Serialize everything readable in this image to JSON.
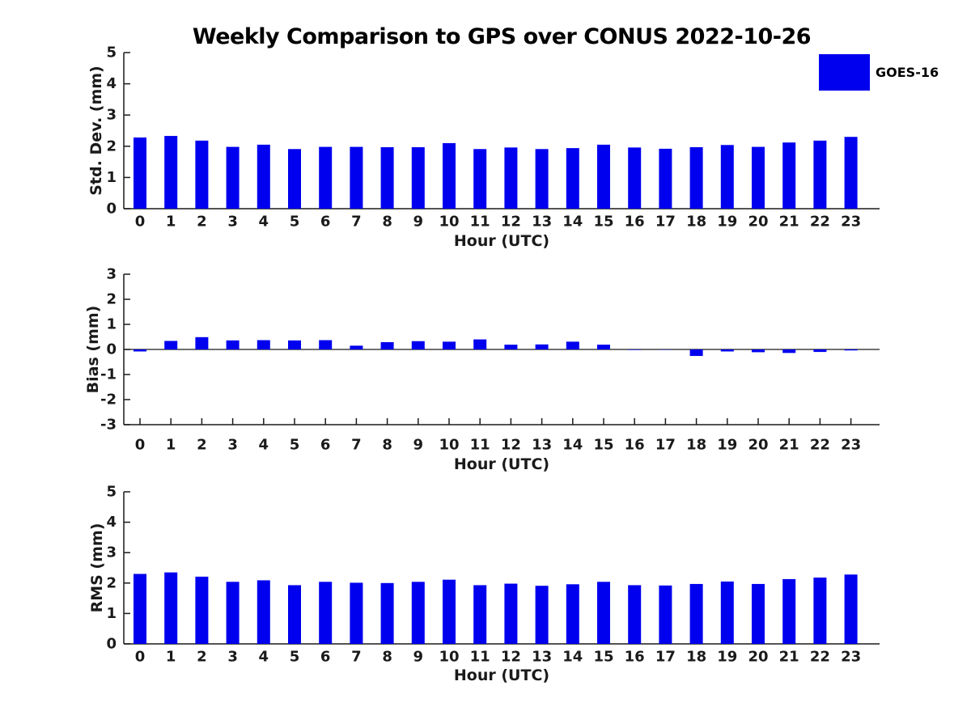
{
  "title": "Weekly Comparison to GPS over CONUS 2022-10-26",
  "legend": {
    "label": "GOES-16",
    "color": "#0000ee"
  },
  "bar_color": "#0000ee",
  "axis_color": "#1a1a1a",
  "hours": [
    "0",
    "1",
    "2",
    "3",
    "4",
    "5",
    "6",
    "7",
    "8",
    "9",
    "10",
    "11",
    "12",
    "13",
    "14",
    "15",
    "16",
    "17",
    "18",
    "19",
    "20",
    "21",
    "22",
    "23"
  ],
  "chart_data": [
    {
      "type": "bar",
      "title": "Weekly Comparison to GPS over CONUS 2022-10-26",
      "series_name": "GOES-16",
      "xlabel": "Hour (UTC)",
      "ylabel": "Std. Dev. (mm)",
      "categories": [
        "0",
        "1",
        "2",
        "3",
        "4",
        "5",
        "6",
        "7",
        "8",
        "9",
        "10",
        "11",
        "12",
        "13",
        "14",
        "15",
        "16",
        "17",
        "18",
        "19",
        "20",
        "21",
        "22",
        "23"
      ],
      "values": [
        2.28,
        2.33,
        2.18,
        1.98,
        2.05,
        1.91,
        1.98,
        1.98,
        1.97,
        1.97,
        2.1,
        1.91,
        1.96,
        1.91,
        1.94,
        2.05,
        1.96,
        1.92,
        1.97,
        2.04,
        1.98,
        2.12,
        2.18,
        2.3
      ],
      "ylim": [
        0,
        5
      ],
      "yticks": [
        0,
        1,
        2,
        3,
        4,
        5
      ],
      "grid": false,
      "legend_position": "top-right"
    },
    {
      "type": "bar",
      "title": "",
      "series_name": "GOES-16",
      "xlabel": "Hour (UTC)",
      "ylabel": "Bias (mm)",
      "categories": [
        "0",
        "1",
        "2",
        "3",
        "4",
        "5",
        "6",
        "7",
        "8",
        "9",
        "10",
        "11",
        "12",
        "13",
        "14",
        "15",
        "16",
        "17",
        "18",
        "19",
        "20",
        "21",
        "22",
        "23"
      ],
      "values": [
        -0.08,
        0.34,
        0.49,
        0.36,
        0.37,
        0.36,
        0.37,
        0.15,
        0.29,
        0.33,
        0.31,
        0.4,
        0.19,
        0.2,
        0.31,
        0.19,
        -0.02,
        -0.01,
        -0.26,
        -0.08,
        -0.11,
        -0.14,
        -0.1,
        -0.04
      ],
      "ylim": [
        -3,
        3
      ],
      "yticks": [
        -3,
        -2,
        -1,
        0,
        1,
        2,
        3
      ],
      "grid": false
    },
    {
      "type": "bar",
      "title": "",
      "series_name": "GOES-16",
      "xlabel": "Hour (UTC)",
      "ylabel": "RMS (mm)",
      "categories": [
        "0",
        "1",
        "2",
        "3",
        "4",
        "5",
        "6",
        "7",
        "8",
        "9",
        "10",
        "11",
        "12",
        "13",
        "14",
        "15",
        "16",
        "17",
        "18",
        "19",
        "20",
        "21",
        "22",
        "23"
      ],
      "values": [
        2.3,
        2.35,
        2.21,
        2.04,
        2.09,
        1.93,
        2.04,
        2.01,
        2.0,
        2.04,
        2.11,
        1.93,
        1.98,
        1.91,
        1.96,
        2.04,
        1.93,
        1.92,
        1.97,
        2.05,
        1.97,
        2.13,
        2.18,
        2.28
      ],
      "ylim": [
        0,
        5
      ],
      "yticks": [
        0,
        1,
        2,
        3,
        4,
        5
      ],
      "grid": false
    }
  ]
}
